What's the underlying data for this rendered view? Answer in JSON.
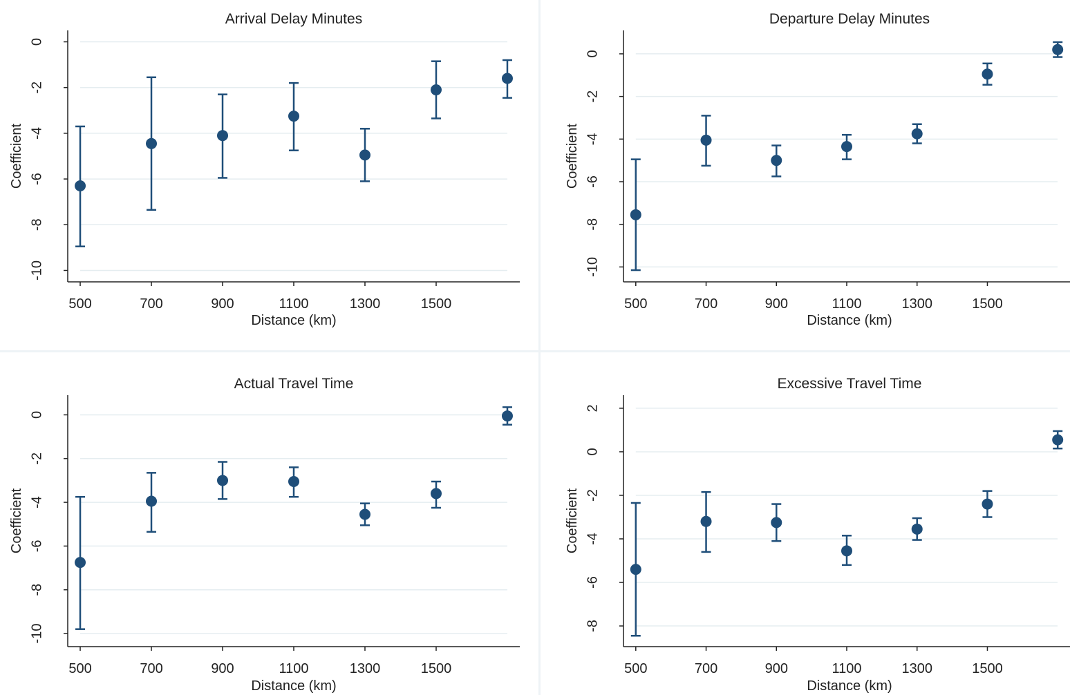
{
  "figure": {
    "colors": {
      "marker": "#1f4e79",
      "grid": "#e5edf0",
      "axis": "#222222"
    }
  },
  "chart_data": [
    {
      "type": "scatter",
      "title": "Arrival Delay Minutes",
      "xlabel": "Distance (km)",
      "ylabel": "Coefficient",
      "x_ticks": [
        500,
        700,
        900,
        1100,
        1300,
        1500
      ],
      "y_ticks": [
        0,
        -2,
        -4,
        -6,
        -8,
        -10
      ],
      "xlim": [
        465,
        1735
      ],
      "ylim": [
        -10.5,
        0.5
      ],
      "grid": true,
      "points": [
        {
          "x": 500,
          "y": -6.3,
          "lo": -8.95,
          "hi": -3.7
        },
        {
          "x": 700,
          "y": -4.45,
          "lo": -7.35,
          "hi": -1.55
        },
        {
          "x": 900,
          "y": -4.1,
          "lo": -5.95,
          "hi": -2.3
        },
        {
          "x": 1100,
          "y": -3.25,
          "lo": -4.75,
          "hi": -1.8
        },
        {
          "x": 1300,
          "y": -4.95,
          "lo": -6.1,
          "hi": -3.8
        },
        {
          "x": 1500,
          "y": -2.1,
          "lo": -3.35,
          "hi": -0.85
        },
        {
          "x": 1700,
          "y": -1.6,
          "lo": -2.45,
          "hi": -0.8
        }
      ]
    },
    {
      "type": "scatter",
      "title": "Departure Delay Minutes",
      "xlabel": "Distance (km)",
      "ylabel": "Coefficient",
      "x_ticks": [
        500,
        700,
        900,
        1100,
        1300,
        1500
      ],
      "y_ticks": [
        0,
        -2,
        -4,
        -6,
        -8,
        -10
      ],
      "xlim": [
        465,
        1735
      ],
      "ylim": [
        -10.7,
        1.1
      ],
      "grid": true,
      "points": [
        {
          "x": 500,
          "y": -7.55,
          "lo": -10.15,
          "hi": -4.95
        },
        {
          "x": 700,
          "y": -4.05,
          "lo": -5.25,
          "hi": -2.9
        },
        {
          "x": 900,
          "y": -5.0,
          "lo": -5.75,
          "hi": -4.3
        },
        {
          "x": 1100,
          "y": -4.35,
          "lo": -4.95,
          "hi": -3.8
        },
        {
          "x": 1300,
          "y": -3.75,
          "lo": -4.2,
          "hi": -3.3
        },
        {
          "x": 1500,
          "y": -0.95,
          "lo": -1.45,
          "hi": -0.45
        },
        {
          "x": 1700,
          "y": 0.2,
          "lo": -0.15,
          "hi": 0.55
        }
      ]
    },
    {
      "type": "scatter",
      "title": "Actual Travel Time",
      "xlabel": "Distance (km)",
      "ylabel": "Coefficient",
      "x_ticks": [
        500,
        700,
        900,
        1100,
        1300,
        1500
      ],
      "y_ticks": [
        0,
        -2,
        -4,
        -6,
        -8,
        -10
      ],
      "xlim": [
        465,
        1735
      ],
      "ylim": [
        -10.6,
        0.9
      ],
      "grid": true,
      "points": [
        {
          "x": 500,
          "y": -6.75,
          "lo": -9.8,
          "hi": -3.75
        },
        {
          "x": 700,
          "y": -3.95,
          "lo": -5.35,
          "hi": -2.65
        },
        {
          "x": 900,
          "y": -3.0,
          "lo": -3.85,
          "hi": -2.15
        },
        {
          "x": 1100,
          "y": -3.05,
          "lo": -3.75,
          "hi": -2.4
        },
        {
          "x": 1300,
          "y": -4.55,
          "lo": -5.05,
          "hi": -4.05
        },
        {
          "x": 1500,
          "y": -3.6,
          "lo": -4.25,
          "hi": -3.05
        },
        {
          "x": 1700,
          "y": -0.05,
          "lo": -0.45,
          "hi": 0.35
        }
      ]
    },
    {
      "type": "scatter",
      "title": "Excessive Travel Time",
      "xlabel": "Distance (km)",
      "ylabel": "Coefficient",
      "x_ticks": [
        500,
        700,
        900,
        1100,
        1300,
        1500
      ],
      "y_ticks": [
        2,
        0,
        -2,
        -4,
        -6,
        -8
      ],
      "xlim": [
        465,
        1735
      ],
      "ylim": [
        -8.95,
        2.6
      ],
      "grid": true,
      "points": [
        {
          "x": 500,
          "y": -5.4,
          "lo": -8.45,
          "hi": -2.35
        },
        {
          "x": 700,
          "y": -3.2,
          "lo": -4.6,
          "hi": -1.85
        },
        {
          "x": 900,
          "y": -3.25,
          "lo": -4.1,
          "hi": -2.4
        },
        {
          "x": 1100,
          "y": -4.55,
          "lo": -5.2,
          "hi": -3.85
        },
        {
          "x": 1300,
          "y": -3.55,
          "lo": -4.05,
          "hi": -3.05
        },
        {
          "x": 1500,
          "y": -2.4,
          "lo": -3.0,
          "hi": -1.8
        },
        {
          "x": 1700,
          "y": 0.55,
          "lo": 0.15,
          "hi": 0.95
        }
      ]
    }
  ]
}
